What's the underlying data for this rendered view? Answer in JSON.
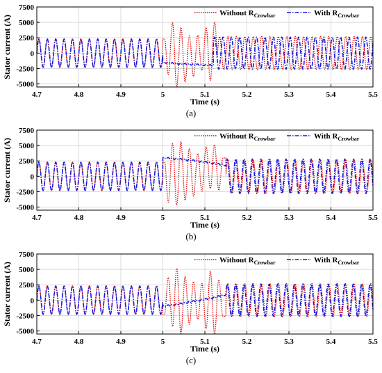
{
  "chart_data": [
    {
      "type": "line",
      "caption": "(a)",
      "xlabel": "Time (s)",
      "ylabel": "Stator current (A)",
      "xlim": [
        4.7,
        5.5
      ],
      "ylim": [
        -5500,
        7500
      ],
      "xticks": [
        "4.7",
        "4.8",
        "4.9",
        "5",
        "5.1",
        "5.2",
        "5.3",
        "5.4",
        "5.5"
      ],
      "yticks": [
        "7500",
        "5000",
        "2500",
        "0",
        "-2500",
        "-5000"
      ],
      "grid": true,
      "legend": "top-right, horizontal",
      "fault_window_s": [
        5.0,
        5.13
      ],
      "series": [
        {
          "name": "Without R",
          "subscript": "Crowbar",
          "color": "#e00000",
          "style": "dotted",
          "steady_amplitude": 2300,
          "frequency_hz": 50,
          "fault_peaks": [
            {
              "x": 5.004,
              "y": 2300
            },
            {
              "x": 5.013,
              "y": -3500
            },
            {
              "x": 5.023,
              "y": 4900
            },
            {
              "x": 5.033,
              "y": -5500
            },
            {
              "x": 5.043,
              "y": 4200
            },
            {
              "x": 5.053,
              "y": -4700
            },
            {
              "x": 5.063,
              "y": 2800
            },
            {
              "x": 5.073,
              "y": -3800
            },
            {
              "x": 5.083,
              "y": 2900
            },
            {
              "x": 5.093,
              "y": -2800
            },
            {
              "x": 5.103,
              "y": 4200
            },
            {
              "x": 5.113,
              "y": -4400
            },
            {
              "x": 5.123,
              "y": 5000
            },
            {
              "x": 5.133,
              "y": -2400
            }
          ],
          "post_fault_amplitude": 2700
        },
        {
          "name": "With R",
          "subscript": "Crowbar",
          "color": "#1a1adc",
          "style": "dash-dot",
          "steady_amplitude": 2300,
          "frequency_hz": 50,
          "fault_points": [
            {
              "x": 5.0,
              "y": -1500
            },
            {
              "x": 5.03,
              "y": -1700
            },
            {
              "x": 5.06,
              "y": -1800
            },
            {
              "x": 5.09,
              "y": -1900
            },
            {
              "x": 5.12,
              "y": -2000
            }
          ],
          "post_fault_amplitude": 2600
        }
      ]
    },
    {
      "type": "line",
      "caption": "(b)",
      "xlabel": "Time (s)",
      "ylabel": "Stator current (A)",
      "xlim": [
        4.7,
        5.5
      ],
      "ylim": [
        -5500,
        7500
      ],
      "xticks": [
        "4.7",
        "4.8",
        "4.9",
        "5",
        "5.1",
        "5.2",
        "5.3",
        "5.4",
        "5.5"
      ],
      "yticks": [
        "7500",
        "5000",
        "2500",
        "0",
        "-2500",
        "-5000"
      ],
      "grid": true,
      "legend": "top-right, horizontal",
      "fault_window_s": [
        5.0,
        5.15
      ],
      "series": [
        {
          "name": "Without R",
          "subscript": "Crowbar",
          "color": "#e00000",
          "style": "dotted",
          "steady_amplitude": 2300,
          "frequency_hz": 50,
          "fault_peaks": [
            {
              "x": 5.004,
              "y": 2300
            },
            {
              "x": 5.013,
              "y": -4200
            },
            {
              "x": 5.023,
              "y": 5300
            },
            {
              "x": 5.033,
              "y": -4700
            },
            {
              "x": 5.043,
              "y": 5600
            },
            {
              "x": 5.053,
              "y": -3900
            },
            {
              "x": 5.063,
              "y": 4500
            },
            {
              "x": 5.073,
              "y": -3200
            },
            {
              "x": 5.083,
              "y": 3700
            },
            {
              "x": 5.093,
              "y": -2400
            },
            {
              "x": 5.103,
              "y": 4800
            },
            {
              "x": 5.113,
              "y": -2000
            },
            {
              "x": 5.123,
              "y": 5100
            },
            {
              "x": 5.133,
              "y": -2300
            },
            {
              "x": 5.143,
              "y": 3000
            }
          ],
          "post_fault_amplitude": 2700
        },
        {
          "name": "With R",
          "subscript": "Crowbar",
          "color": "#1a1adc",
          "style": "dash-dot",
          "steady_amplitude": 2300,
          "frequency_hz": 50,
          "fault_points": [
            {
              "x": 5.0,
              "y": 3000
            },
            {
              "x": 5.04,
              "y": 2800
            },
            {
              "x": 5.08,
              "y": 2500
            },
            {
              "x": 5.12,
              "y": 2100
            },
            {
              "x": 5.15,
              "y": 1800
            }
          ],
          "post_fault_amplitude": 2800
        }
      ]
    },
    {
      "type": "line",
      "caption": "(c)",
      "xlabel": "Time (s)",
      "ylabel": "Stator current (A)",
      "xlim": [
        4.7,
        5.5
      ],
      "ylim": [
        -5500,
        7500
      ],
      "xticks": [
        "4.7",
        "4.8",
        "4.9",
        "5",
        "5.1",
        "5.2",
        "5.3",
        "5.4",
        "5.5"
      ],
      "yticks": [
        "7500",
        "5000",
        "2500",
        "0",
        "-2500",
        "-5000"
      ],
      "grid": true,
      "legend": "top-right, horizontal",
      "fault_window_s": [
        5.0,
        5.15
      ],
      "series": [
        {
          "name": "Without R",
          "subscript": "Crowbar",
          "color": "#e00000",
          "style": "dotted",
          "steady_amplitude": 2300,
          "frequency_hz": 50,
          "fault_peaks": [
            {
              "x": 5.004,
              "y": -2300
            },
            {
              "x": 5.013,
              "y": 3700
            },
            {
              "x": 5.023,
              "y": -4300
            },
            {
              "x": 5.033,
              "y": 5200
            },
            {
              "x": 5.043,
              "y": -5400
            },
            {
              "x": 5.053,
              "y": 3800
            },
            {
              "x": 5.063,
              "y": -3900
            },
            {
              "x": 5.073,
              "y": 3000
            },
            {
              "x": 5.083,
              "y": -3100
            },
            {
              "x": 5.093,
              "y": 2700
            },
            {
              "x": 5.103,
              "y": -4600
            },
            {
              "x": 5.113,
              "y": 4700
            },
            {
              "x": 5.123,
              "y": -5500
            },
            {
              "x": 5.133,
              "y": 3300
            },
            {
              "x": 5.143,
              "y": -2600
            }
          ],
          "post_fault_amplitude": 2700
        },
        {
          "name": "With R",
          "subscript": "Crowbar",
          "color": "#1a1adc",
          "style": "dash-dot",
          "steady_amplitude": 2300,
          "frequency_hz": 50,
          "fault_points": [
            {
              "x": 5.0,
              "y": -1000
            },
            {
              "x": 5.04,
              "y": -600
            },
            {
              "x": 5.08,
              "y": -100
            },
            {
              "x": 5.12,
              "y": 400
            },
            {
              "x": 5.15,
              "y": 900
            }
          ],
          "post_fault_amplitude": 2600
        }
      ]
    }
  ]
}
